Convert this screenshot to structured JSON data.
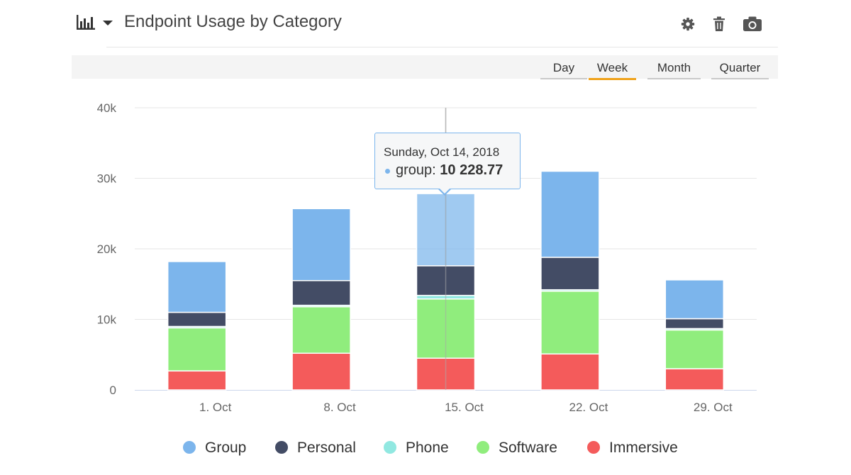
{
  "header": {
    "title": "Endpoint Usage by Category",
    "chart_type_icon": "bar-chart-icon",
    "menu_icon": "caret-down-icon",
    "tools": [
      {
        "name": "gear-icon"
      },
      {
        "name": "trash-icon"
      },
      {
        "name": "camera-icon"
      }
    ]
  },
  "range_selector": {
    "options": [
      "Day",
      "Week",
      "Month",
      "Quarter"
    ],
    "active": "Week",
    "active_color": "#f0a21a"
  },
  "tooltip": {
    "date": "Sunday, Oct 14, 2018",
    "series": "group",
    "series_separator": ": ",
    "value": "10 228.77",
    "color": "#7cb5ec"
  },
  "chart_data": {
    "type": "bar",
    "stacked": true,
    "categories": [
      "1. Oct",
      "8. Oct",
      "15. Oct",
      "22. Oct",
      "29. Oct"
    ],
    "y_ticks": [
      "0",
      "10k",
      "20k",
      "30k",
      "40k"
    ],
    "ylim": [
      0,
      40000
    ],
    "grid": true,
    "legend_position": "bottom",
    "series": [
      {
        "name": "Immersive",
        "color": "#f45b5b",
        "values": [
          2700,
          5200,
          4500,
          5100,
          3000
        ]
      },
      {
        "name": "Software",
        "color": "#90ed7d",
        "values": [
          6100,
          6600,
          8400,
          8900,
          5500
        ]
      },
      {
        "name": "Phone",
        "color": "#91e8e1",
        "values": [
          200,
          200,
          500,
          200,
          200
        ]
      },
      {
        "name": "Personal",
        "color": "#434c65",
        "values": [
          2000,
          3500,
          4200,
          4600,
          1400
        ]
      },
      {
        "name": "Group",
        "color": "#7cb5ec",
        "values": [
          7200,
          10200,
          10228.77,
          12200,
          5500
        ]
      }
    ],
    "hovered": {
      "category_index": 2,
      "series": "Group"
    }
  },
  "legend": {
    "items": [
      {
        "label": "Group",
        "color": "#7cb5ec"
      },
      {
        "label": "Personal",
        "color": "#434c65"
      },
      {
        "label": "Phone",
        "color": "#91e8e1"
      },
      {
        "label": "Software",
        "color": "#90ed7d"
      },
      {
        "label": "Immersive",
        "color": "#f45b5b"
      }
    ]
  }
}
